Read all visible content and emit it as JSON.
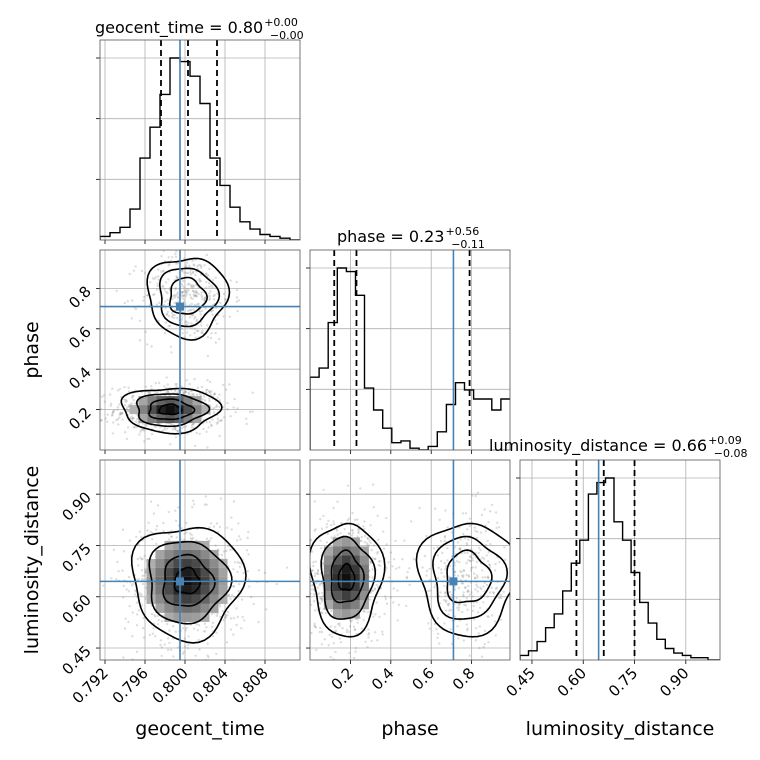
{
  "chart_data": {
    "type": "corner",
    "parameters": [
      "geocent_time",
      "phase",
      "luminosity_distance"
    ],
    "truths": {
      "geocent_time": 0.7995,
      "phase": 0.71,
      "luminosity_distance": 0.645
    },
    "colors": {
      "truth": "#4682b4",
      "hist": "#000000",
      "contour": "#000000"
    },
    "titles": [
      {
        "name": "geocent_time",
        "median": "0.80",
        "plus": "+0.00",
        "minus": "−0.00"
      },
      {
        "name": "phase",
        "median": "0.23",
        "plus": "+0.56",
        "minus": "−0.11"
      },
      {
        "name": "luminosity_distance",
        "median": "0.66",
        "plus": "+0.09",
        "minus": "−0.08"
      }
    ],
    "axes": {
      "geocent_time": {
        "label": "geocent_time",
        "range": [
          0.7915,
          0.8115
        ],
        "ticks": [
          0.792,
          0.796,
          0.8,
          0.804,
          0.808
        ],
        "ticklabels": [
          "0.792",
          "0.796",
          "0.800",
          "0.804",
          "0.808"
        ]
      },
      "phase": {
        "label": "phase",
        "range": [
          0.0,
          0.99
        ],
        "ticks": [
          0.2,
          0.4,
          0.6,
          0.8
        ],
        "ticklabels": [
          "0.2",
          "0.4",
          "0.6",
          "0.8"
        ]
      },
      "luminosity_distance": {
        "label": "luminosity_distance",
        "range": [
          0.415,
          1.0
        ],
        "ticks": [
          0.45,
          0.6,
          0.75,
          0.9
        ],
        "ticklabels": [
          "0.45",
          "0.60",
          "0.75",
          "0.90"
        ]
      }
    },
    "histograms": {
      "geocent_time": {
        "edges": [
          0.7915,
          0.7925,
          0.7935,
          0.7945,
          0.7955,
          0.7965,
          0.7975,
          0.7985,
          0.7995,
          0.8005,
          0.8015,
          0.8025,
          0.8035,
          0.8045,
          0.8055,
          0.8065,
          0.8075,
          0.8085,
          0.8095,
          0.8105,
          0.8115
        ],
        "counts": [
          2,
          4,
          7,
          17,
          45,
          62,
          80,
          100,
          98,
          90,
          75,
          45,
          30,
          18,
          10,
          6,
          3,
          2,
          1,
          0
        ],
        "quantiles": [
          0.7976,
          0.8003,
          0.8032
        ]
      },
      "phase": {
        "edges": [
          0.0,
          0.045,
          0.09,
          0.135,
          0.18,
          0.225,
          0.27,
          0.315,
          0.36,
          0.405,
          0.45,
          0.495,
          0.54,
          0.585,
          0.63,
          0.675,
          0.72,
          0.765,
          0.81,
          0.855,
          0.9,
          0.945,
          0.99
        ],
        "counts": [
          40,
          45,
          70,
          100,
          98,
          85,
          34,
          22,
          12,
          4,
          5,
          1,
          0,
          2,
          10,
          25,
          37,
          33,
          28,
          28,
          22,
          28
        ],
        "quantiles": [
          0.12,
          0.23,
          0.79
        ]
      },
      "luminosity_distance": {
        "edges": [
          0.415,
          0.44,
          0.465,
          0.49,
          0.515,
          0.54,
          0.565,
          0.59,
          0.615,
          0.64,
          0.665,
          0.69,
          0.715,
          0.74,
          0.765,
          0.79,
          0.815,
          0.84,
          0.865,
          0.89,
          0.915,
          0.94,
          0.965,
          0.99,
          1.0
        ],
        "counts": [
          2,
          4,
          8,
          14,
          20,
          30,
          42,
          52,
          72,
          77,
          79,
          60,
          52,
          38,
          25,
          16,
          9,
          5,
          3,
          2,
          1,
          1,
          0,
          0
        ],
        "quantiles": [
          0.58,
          0.66,
          0.75
        ]
      }
    },
    "pairs": [
      {
        "x": "geocent_time",
        "y": "phase"
      },
      {
        "x": "geocent_time",
        "y": "luminosity_distance"
      },
      {
        "x": "phase",
        "y": "luminosity_distance"
      }
    ],
    "density_modes": [
      {
        "pair": "geocent_time|phase",
        "center": [
          0.7985,
          0.2
        ],
        "spread": [
          0.0022,
          0.05
        ],
        "weight": 1.0
      },
      {
        "pair": "geocent_time|phase",
        "center": [
          0.8002,
          0.76
        ],
        "spread": [
          0.0018,
          0.09
        ],
        "weight": 0.55
      },
      {
        "pair": "geocent_time|luminosity_distance",
        "center": [
          0.8002,
          0.645
        ],
        "spread": [
          0.0025,
          0.075
        ],
        "weight": 1.0
      },
      {
        "pair": "phase|luminosity_distance",
        "center": [
          0.18,
          0.655
        ],
        "spread": [
          0.08,
          0.075
        ],
        "weight": 1.0
      },
      {
        "pair": "phase|luminosity_distance",
        "center": [
          0.78,
          0.655
        ],
        "spread": [
          0.11,
          0.075
        ],
        "weight": 0.5
      }
    ]
  }
}
